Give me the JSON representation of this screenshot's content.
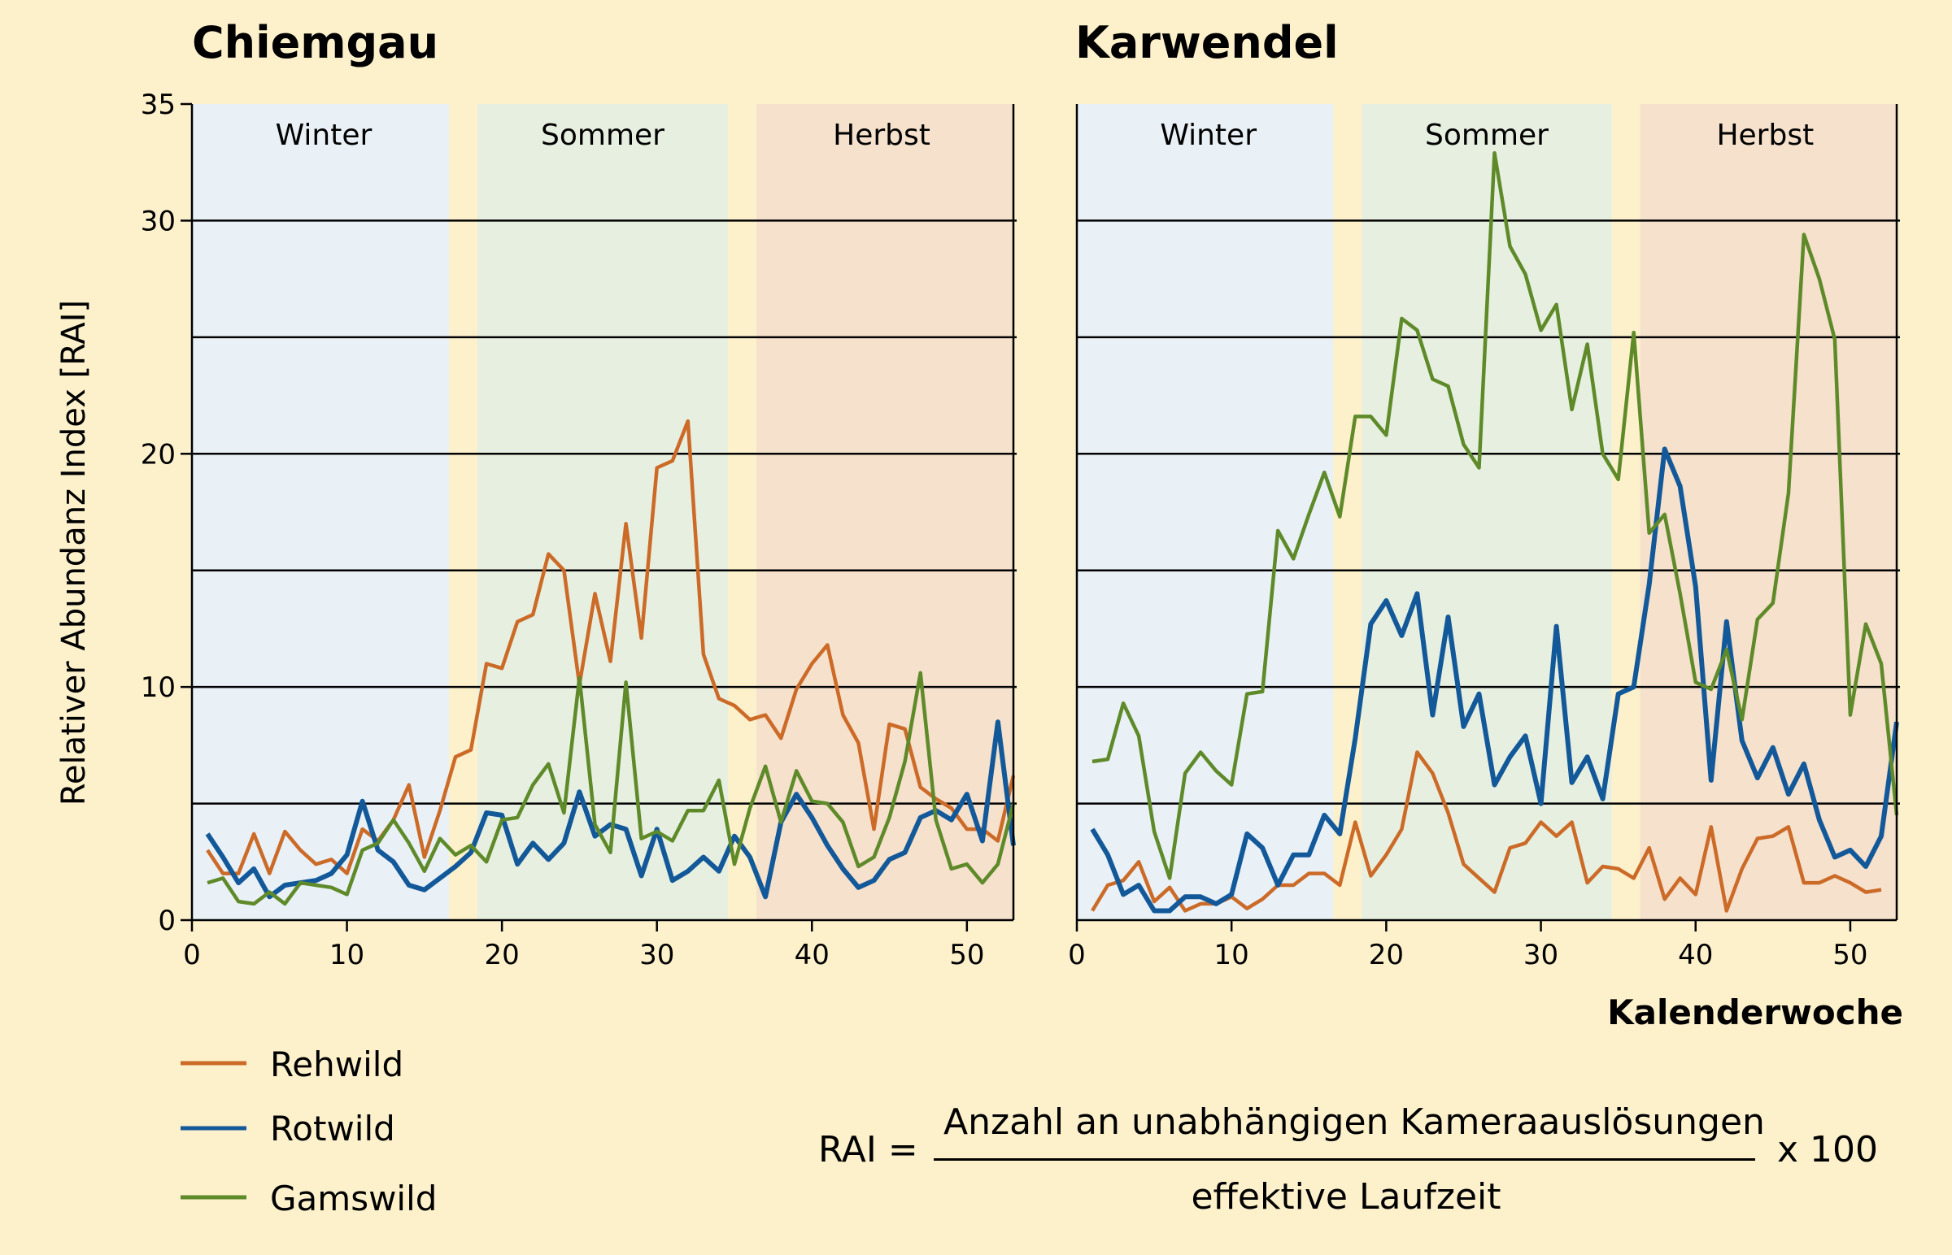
{
  "colors": {
    "background": "#fdf1cc",
    "Rehwild": "#cc6a28",
    "Rotwild": "#13599a",
    "Gamswild": "#5f8a2a",
    "Winter": "#e9f1f6",
    "Sommer": "#e7f0e0",
    "Herbst": "#f5e1cc"
  },
  "ylabel": "Relativer Abundanz Index [RAI]",
  "xlabel": "Kalenderwoche",
  "legend": [
    {
      "label": "Rehwild",
      "color": "#cc6a28"
    },
    {
      "label": "Rotwild",
      "color": "#13599a"
    },
    {
      "label": "Gamswild",
      "color": "#5f8a2a"
    }
  ],
  "formula": {
    "lhs": "RAI =",
    "numerator": "Anzahl an unabhängigen Kameraauslösungen",
    "denominator": "effektive Laufzeit",
    "factor": "x 100"
  },
  "chart_data": [
    {
      "type": "line",
      "title": "Chiemgau",
      "xlim": [
        0,
        53
      ],
      "ylim": [
        0,
        35
      ],
      "xticks": [
        0,
        10,
        20,
        30,
        40,
        50
      ],
      "yticks": [
        0,
        10,
        20,
        30,
        35
      ],
      "grid_y": [
        5,
        10,
        15,
        20,
        25,
        30
      ],
      "seasons": [
        {
          "label": "Winter",
          "from": 0,
          "to": 17
        },
        {
          "label": "Sommer",
          "from": 18,
          "to": 35
        },
        {
          "label": "Herbst",
          "from": 36,
          "to": 53
        }
      ],
      "x": [
        1,
        2,
        3,
        4,
        5,
        6,
        7,
        8,
        9,
        10,
        11,
        12,
        13,
        14,
        15,
        16,
        17,
        18,
        19,
        20,
        21,
        22,
        23,
        24,
        25,
        26,
        27,
        28,
        29,
        30,
        31,
        32,
        33,
        34,
        35,
        36,
        37,
        38,
        39,
        40,
        41,
        42,
        43,
        44,
        45,
        46,
        47,
        48,
        49,
        50,
        51,
        52,
        53
      ],
      "series": [
        {
          "name": "Rehwild",
          "values": [
            3.0,
            2.0,
            2.0,
            3.7,
            2.0,
            3.8,
            3.0,
            2.4,
            2.6,
            2.0,
            3.9,
            3.4,
            4.3,
            5.8,
            2.7,
            4.7,
            7.0,
            7.3,
            11.0,
            10.8,
            12.8,
            13.1,
            15.7,
            15.0,
            10.1,
            14.0,
            11.1,
            17.0,
            12.1,
            19.4,
            19.7,
            21.4,
            11.4,
            9.5,
            9.2,
            8.6,
            8.8,
            7.8,
            9.9,
            11.0,
            11.8,
            8.8,
            7.6,
            3.9,
            8.4,
            8.2,
            5.7,
            5.2,
            4.8,
            3.9,
            3.9,
            3.4,
            6.2
          ]
        },
        {
          "name": "Rotwild",
          "values": [
            3.7,
            2.7,
            1.6,
            2.2,
            1.0,
            1.5,
            1.6,
            1.7,
            2.0,
            2.8,
            5.1,
            3.0,
            2.5,
            1.5,
            1.3,
            1.8,
            2.3,
            2.9,
            4.6,
            4.5,
            2.4,
            3.3,
            2.6,
            3.3,
            5.5,
            3.6,
            4.1,
            3.9,
            1.9,
            3.9,
            1.7,
            2.1,
            2.7,
            2.1,
            3.6,
            2.7,
            1.0,
            4.2,
            5.4,
            4.4,
            3.2,
            2.2,
            1.4,
            1.7,
            2.6,
            2.9,
            4.4,
            4.7,
            4.3,
            5.4,
            3.4,
            8.5,
            3.2
          ]
        },
        {
          "name": "Gamswild",
          "values": [
            1.6,
            1.8,
            0.8,
            0.7,
            1.2,
            0.7,
            1.6,
            1.5,
            1.4,
            1.1,
            3.0,
            3.3,
            4.3,
            3.3,
            2.1,
            3.5,
            2.8,
            3.2,
            2.5,
            4.3,
            4.4,
            5.8,
            6.7,
            4.6,
            10.4,
            4.1,
            2.9,
            10.2,
            3.5,
            3.8,
            3.4,
            4.7,
            4.7,
            6.0,
            2.4,
            4.8,
            6.6,
            4.2,
            6.4,
            5.1,
            5.0,
            4.2,
            2.3,
            2.7,
            4.4,
            6.8,
            10.6,
            4.3,
            2.2,
            2.4,
            1.6,
            2.4,
            5.0
          ]
        }
      ]
    },
    {
      "type": "line",
      "title": "Karwendel",
      "xlim": [
        0,
        53
      ],
      "ylim": [
        0,
        35
      ],
      "xticks": [
        0,
        10,
        20,
        30,
        40,
        50
      ],
      "yticks": [],
      "grid_y": [
        5,
        10,
        15,
        20,
        25,
        30
      ],
      "seasons": [
        {
          "label": "Winter",
          "from": 0,
          "to": 17
        },
        {
          "label": "Sommer",
          "from": 18,
          "to": 35
        },
        {
          "label": "Herbst",
          "from": 36,
          "to": 53
        }
      ],
      "x": [
        1,
        2,
        3,
        4,
        5,
        6,
        7,
        8,
        9,
        10,
        11,
        12,
        13,
        14,
        15,
        16,
        17,
        18,
        19,
        20,
        21,
        22,
        23,
        24,
        25,
        26,
        27,
        28,
        29,
        30,
        31,
        32,
        33,
        34,
        35,
        36,
        37,
        38,
        39,
        40,
        41,
        42,
        43,
        44,
        45,
        46,
        47,
        48,
        49,
        50,
        51,
        52,
        53
      ],
      "series": [
        {
          "name": "Rehwild",
          "values": [
            0.4,
            1.5,
            1.7,
            2.5,
            0.8,
            1.4,
            0.4,
            0.7,
            0.7,
            1.0,
            0.5,
            0.9,
            1.5,
            1.5,
            2.0,
            2.0,
            1.5,
            4.2,
            1.9,
            2.8,
            3.9,
            7.2,
            6.3,
            4.6,
            2.4,
            1.8,
            1.2,
            3.1,
            3.3,
            4.2,
            3.6,
            4.2,
            1.6,
            2.3,
            2.2,
            1.8,
            3.1,
            0.9,
            1.8,
            1.1,
            4.0,
            0.4,
            2.2,
            3.5,
            3.6,
            4.0,
            1.6,
            1.6,
            1.9,
            1.6,
            1.2,
            1.3,
            null
          ]
        },
        {
          "name": "Rotwild",
          "values": [
            3.9,
            2.8,
            1.1,
            1.5,
            0.4,
            0.4,
            1.0,
            1.0,
            0.7,
            1.1,
            3.7,
            3.1,
            1.5,
            2.8,
            2.8,
            4.5,
            3.7,
            7.8,
            12.7,
            13.7,
            12.2,
            14.0,
            8.8,
            13.0,
            8.3,
            9.7,
            5.8,
            7.0,
            7.9,
            5.0,
            12.6,
            5.9,
            7.0,
            5.2,
            9.7,
            10.0,
            14.4,
            20.2,
            18.6,
            14.3,
            6.0,
            12.8,
            7.7,
            6.1,
            7.4,
            5.4,
            6.7,
            4.3,
            2.7,
            3.0,
            2.3,
            3.6,
            8.5
          ]
        },
        {
          "name": "Gamswild",
          "values": [
            6.8,
            6.9,
            9.3,
            7.9,
            3.8,
            1.8,
            6.3,
            7.2,
            6.4,
            5.8,
            9.7,
            9.8,
            16.7,
            15.5,
            17.4,
            19.2,
            17.3,
            21.6,
            21.6,
            20.8,
            25.8,
            25.3,
            23.2,
            22.9,
            20.4,
            19.4,
            32.9,
            28.9,
            27.7,
            25.3,
            26.4,
            21.9,
            24.7,
            20.0,
            18.9,
            25.2,
            16.6,
            17.4,
            14.0,
            10.2,
            9.9,
            11.6,
            8.6,
            12.9,
            13.6,
            18.3,
            29.4,
            27.5,
            24.9,
            8.8,
            12.7,
            11.0,
            4.5
          ]
        }
      ]
    }
  ]
}
